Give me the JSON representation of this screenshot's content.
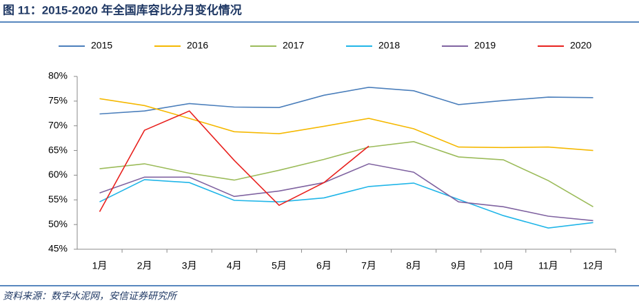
{
  "chart_data": {
    "type": "line",
    "title": "图 11：2015-2020 年全国库容比分月变化情况",
    "source": "资料来源：数字水泥网，安信证券研究所",
    "categories": [
      "1月",
      "2月",
      "3月",
      "4月",
      "5月",
      "6月",
      "7月",
      "8月",
      "9月",
      "10月",
      "11月",
      "12月"
    ],
    "series": [
      {
        "name": "2015",
        "color": "#4a7ebb",
        "values": [
          72.4,
          73.0,
          74.5,
          73.8,
          73.7,
          76.2,
          77.8,
          77.1,
          74.3,
          75.1,
          75.8,
          75.7
        ]
      },
      {
        "name": "2016",
        "color": "#f5b800",
        "values": [
          75.5,
          74.1,
          71.5,
          68.8,
          68.4,
          69.9,
          71.5,
          69.4,
          65.7,
          65.6,
          65.7,
          65.0
        ]
      },
      {
        "name": "2017",
        "color": "#9bbb59",
        "values": [
          61.3,
          62.3,
          60.4,
          59.0,
          61.0,
          63.2,
          65.7,
          66.8,
          63.7,
          63.1,
          58.9,
          53.6
        ]
      },
      {
        "name": "2018",
        "color": "#1fb5e8",
        "values": [
          54.6,
          59.1,
          58.5,
          54.9,
          54.6,
          55.4,
          57.7,
          58.4,
          55.1,
          51.8,
          49.3,
          50.4
        ]
      },
      {
        "name": "2019",
        "color": "#7f62a0",
        "values": [
          56.4,
          59.6,
          59.6,
          55.7,
          56.8,
          58.5,
          62.3,
          60.6,
          54.6,
          53.6,
          51.7,
          50.8
        ]
      },
      {
        "name": "2020",
        "color": "#e8201d",
        "values": [
          52.6,
          69.1,
          73.0,
          63.0,
          53.9,
          58.5,
          65.9,
          null,
          null,
          null,
          null,
          null
        ]
      }
    ],
    "ylim": [
      45,
      80
    ],
    "yticks": [
      {
        "value": 45,
        "label": "45%"
      },
      {
        "value": 50,
        "label": "50%"
      },
      {
        "value": 55,
        "label": "55%"
      },
      {
        "value": 60,
        "label": "60%"
      },
      {
        "value": 65,
        "label": "65%"
      },
      {
        "value": 70,
        "label": "70%"
      },
      {
        "value": 75,
        "label": "75%"
      },
      {
        "value": 80,
        "label": "80%"
      }
    ],
    "legend": "top"
  }
}
